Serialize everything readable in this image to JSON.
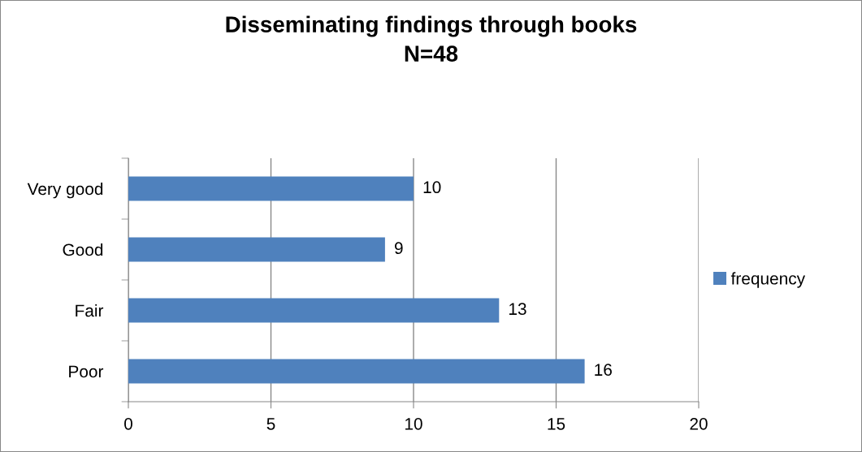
{
  "chart_data": {
    "type": "bar",
    "orientation": "horizontal",
    "title": "Disseminating findings through books\nN=48",
    "categories": [
      "Very good",
      "Good",
      "Fair",
      "Poor"
    ],
    "series": [
      {
        "name": "frequency",
        "color": "#4f81bd",
        "values": [
          10,
          9,
          13,
          16
        ]
      }
    ],
    "xlim": [
      0,
      20
    ],
    "xticks": [
      0,
      5,
      10,
      15,
      20
    ],
    "grid": "x",
    "legend": "right",
    "data_labels": true
  }
}
